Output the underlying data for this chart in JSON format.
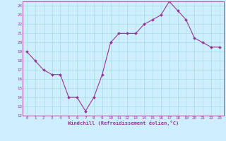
{
  "x": [
    0,
    1,
    2,
    3,
    4,
    5,
    6,
    7,
    8,
    9,
    10,
    11,
    12,
    13,
    14,
    15,
    16,
    17,
    18,
    19,
    20,
    21,
    22,
    23
  ],
  "y": [
    19,
    18,
    17,
    16.5,
    16.5,
    14,
    14,
    12.5,
    14,
    16.5,
    20,
    21,
    21,
    21,
    22,
    22.5,
    23,
    24.5,
    23.5,
    22.5,
    20.5,
    20,
    19.5,
    19.5
  ],
  "ylim": [
    12,
    24.5
  ],
  "yticks": [
    12,
    13,
    14,
    15,
    16,
    17,
    18,
    19,
    20,
    21,
    22,
    23,
    24
  ],
  "xlim": [
    -0.5,
    23.5
  ],
  "xticks": [
    0,
    1,
    2,
    3,
    4,
    5,
    6,
    7,
    8,
    9,
    10,
    11,
    12,
    13,
    14,
    15,
    16,
    17,
    18,
    19,
    20,
    21,
    22,
    23
  ],
  "xlabel": "Windchill (Refroidissement éolien,°C)",
  "line_color": "#993399",
  "marker": "D",
  "marker_size": 2.0,
  "bg_color": "#cceeff",
  "grid_color": "#aadddd",
  "spine_color": "#993399"
}
